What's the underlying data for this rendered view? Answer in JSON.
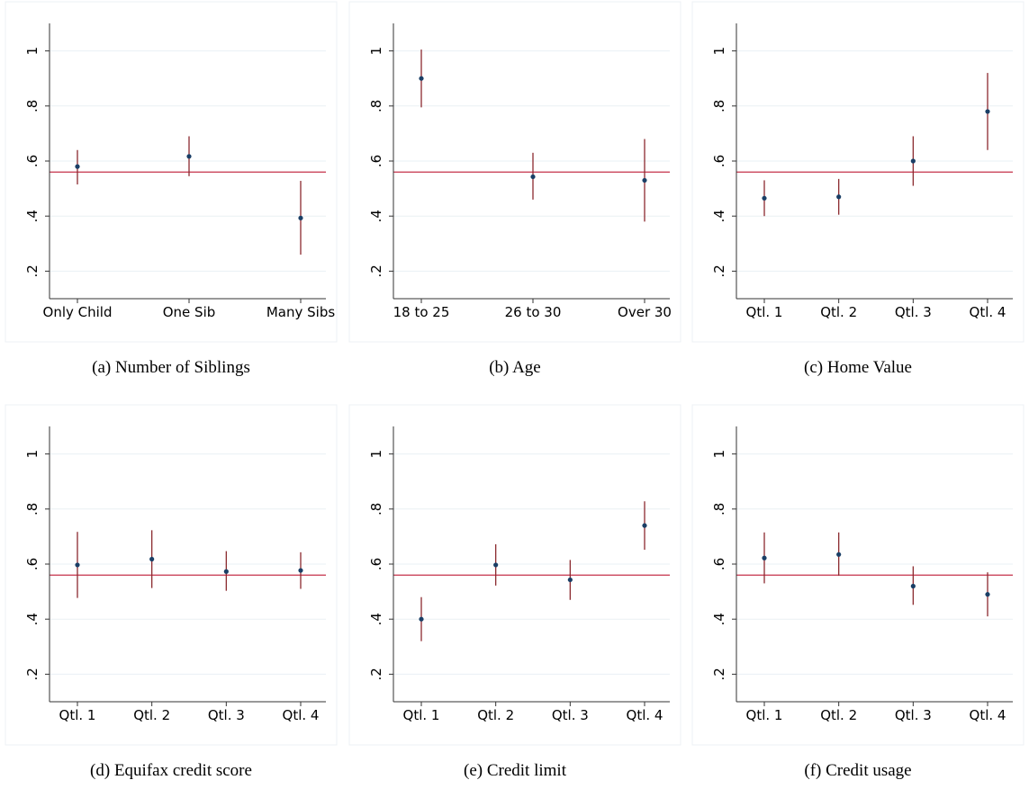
{
  "chart_data": [
    {
      "type": "errorbar",
      "caption": "(a) Number of Siblings",
      "categories": [
        "Only Child",
        "One Sib",
        "Many Sibs"
      ],
      "values": [
        0.58,
        0.617,
        0.393
      ],
      "lower": [
        0.515,
        0.545,
        0.26
      ],
      "upper": [
        0.64,
        0.69,
        0.528
      ],
      "reference_line": 0.56,
      "ylim": [
        0.1,
        1.1
      ],
      "yticks": [
        {
          "value": 0.2,
          "label": ".2"
        },
        {
          "value": 0.4,
          "label": ".4"
        },
        {
          "value": 0.6,
          "label": ".6"
        },
        {
          "value": 0.8,
          "label": ".8"
        },
        1
      ],
      "grid": true,
      "color": "#1a3f66",
      "bar_color": "#8b2a2f",
      "line_color": "#c4304a"
    },
    {
      "type": "errorbar",
      "caption": "(b) Age",
      "categories": [
        "18 to 25",
        "26 to 30",
        "Over 30"
      ],
      "values": [
        0.9,
        0.543,
        0.53
      ],
      "lower": [
        0.795,
        0.46,
        0.38
      ],
      "upper": [
        1.005,
        0.63,
        0.68
      ],
      "reference_line": 0.56,
      "ylim": [
        0.1,
        1.1
      ],
      "yticks": [
        {
          "value": 0.2,
          "label": ".2"
        },
        {
          "value": 0.4,
          "label": ".4"
        },
        {
          "value": 0.6,
          "label": ".6"
        },
        {
          "value": 0.8,
          "label": ".8"
        },
        1
      ],
      "grid": true,
      "color": "#1a3f66",
      "bar_color": "#8b2a2f",
      "line_color": "#c4304a"
    },
    {
      "type": "errorbar",
      "caption": "(c) Home Value",
      "categories": [
        "Qtl. 1",
        "Qtl. 2",
        "Qtl. 3",
        "Qtl. 4"
      ],
      "values": [
        0.465,
        0.47,
        0.6,
        0.78
      ],
      "lower": [
        0.4,
        0.405,
        0.51,
        0.64
      ],
      "upper": [
        0.53,
        0.535,
        0.69,
        0.92
      ],
      "reference_line": 0.56,
      "ylim": [
        0.1,
        1.1
      ],
      "yticks": [
        {
          "value": 0.2,
          "label": ".2"
        },
        {
          "value": 0.4,
          "label": ".4"
        },
        {
          "value": 0.6,
          "label": ".6"
        },
        {
          "value": 0.8,
          "label": ".8"
        },
        1
      ],
      "grid": true,
      "color": "#1a3f66",
      "bar_color": "#8b2a2f",
      "line_color": "#c4304a"
    },
    {
      "type": "errorbar",
      "caption": "(d) Equifax credit score",
      "categories": [
        "Qtl. 1",
        "Qtl. 2",
        "Qtl. 3",
        "Qtl. 4"
      ],
      "values": [
        0.597,
        0.618,
        0.573,
        0.577
      ],
      "lower": [
        0.477,
        0.513,
        0.503,
        0.51
      ],
      "upper": [
        0.717,
        0.723,
        0.647,
        0.643
      ],
      "reference_line": 0.56,
      "ylim": [
        0.1,
        1.1
      ],
      "yticks": [
        {
          "value": 0.2,
          "label": ".2"
        },
        {
          "value": 0.4,
          "label": ".4"
        },
        {
          "value": 0.6,
          "label": ".6"
        },
        {
          "value": 0.8,
          "label": ".8"
        },
        1
      ],
      "grid": true,
      "color": "#1a3f66",
      "bar_color": "#8b2a2f",
      "line_color": "#c4304a"
    },
    {
      "type": "errorbar",
      "caption": "(e) Credit limit",
      "categories": [
        "Qtl. 1",
        "Qtl. 2",
        "Qtl. 3",
        "Qtl. 4"
      ],
      "values": [
        0.4,
        0.597,
        0.543,
        0.74
      ],
      "lower": [
        0.32,
        0.522,
        0.47,
        0.652
      ],
      "upper": [
        0.48,
        0.672,
        0.615,
        0.828
      ],
      "reference_line": 0.56,
      "ylim": [
        0.1,
        1.1
      ],
      "yticks": [
        {
          "value": 0.2,
          "label": ".2"
        },
        {
          "value": 0.4,
          "label": ".4"
        },
        {
          "value": 0.6,
          "label": ".6"
        },
        {
          "value": 0.8,
          "label": ".8"
        },
        1
      ],
      "grid": true,
      "color": "#1a3f66",
      "bar_color": "#8b2a2f",
      "line_color": "#c4304a"
    },
    {
      "type": "errorbar",
      "caption": "(f) Credit usage",
      "categories": [
        "Qtl. 1",
        "Qtl. 2",
        "Qtl. 3",
        "Qtl. 4"
      ],
      "values": [
        0.622,
        0.635,
        0.52,
        0.49
      ],
      "lower": [
        0.53,
        0.558,
        0.452,
        0.41
      ],
      "upper": [
        0.715,
        0.715,
        0.592,
        0.57
      ],
      "reference_line": 0.56,
      "ylim": [
        0.1,
        1.1
      ],
      "yticks": [
        {
          "value": 0.2,
          "label": ".2"
        },
        {
          "value": 0.4,
          "label": ".4"
        },
        {
          "value": 0.6,
          "label": ".6"
        },
        {
          "value": 0.8,
          "label": ".8"
        },
        1
      ],
      "grid": true,
      "color": "#1a3f66",
      "bar_color": "#8b2a2f",
      "line_color": "#c4304a"
    }
  ]
}
